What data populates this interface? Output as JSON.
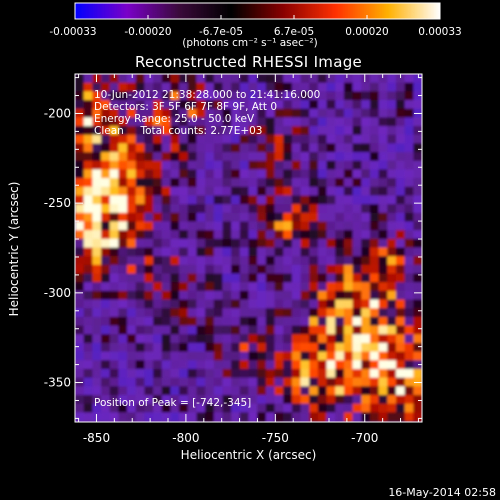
{
  "colorbar": {
    "tick_labels": [
      "-0.00033",
      "-0.00020",
      "-6.7e-05",
      "6.7e-05",
      "0.00020",
      "0.00033"
    ],
    "min": -0.00033,
    "max": 0.00033,
    "unit_label": "(photons cm⁻² s⁻¹ asec⁻²)",
    "colors": [
      "#0000ff",
      "#7a00c8",
      "#3a0a3a",
      "#000000",
      "#8a0000",
      "#ff3000",
      "#ffb000",
      "#ffffff"
    ]
  },
  "plot": {
    "title": "Reconstructed RHESSI Image",
    "xlabel": "Heliocentric X (arcsec)",
    "ylabel": "Heliocentric Y (arcsec)",
    "x_ticks": [
      "-850",
      "-800",
      "-750",
      "-700"
    ],
    "y_ticks": [
      "-200",
      "-250",
      "-300",
      "-350"
    ],
    "xlim": [
      -862,
      -668
    ],
    "ylim": [
      -372,
      -178
    ],
    "x_tick_values": [
      -850,
      -800,
      -750,
      -700
    ],
    "y_tick_values": [
      -200,
      -250,
      -300,
      -350
    ]
  },
  "info": {
    "time_range": "10-Jun-2012 21:38:28.000 to 21:41:16.000",
    "detectors": "Detectors: 3F 5F 6F 7F 8F 9F, Att 0",
    "energy_range": "Energy Range: 25.0 - 50.0 keV",
    "clean": "Clean     Total counts: 2.77E+03",
    "peak": "Position of Peak = [-742,-345]"
  },
  "timestamp": "16-May-2014 02:58"
}
